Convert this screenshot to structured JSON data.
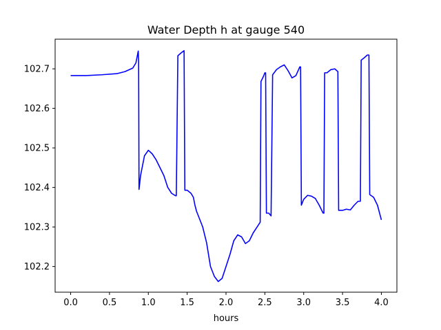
{
  "chart_data": {
    "type": "line",
    "title": "Water Depth h at gauge 540",
    "xlabel": "hours",
    "ylabel": "",
    "xlim": [
      -0.2,
      4.2
    ],
    "ylim": [
      102.135,
      102.775
    ],
    "xticks": [
      0.0,
      0.5,
      1.0,
      1.5,
      2.0,
      2.5,
      3.0,
      3.5,
      4.0
    ],
    "xtick_labels": [
      "0.0",
      "0.5",
      "1.0",
      "1.5",
      "2.0",
      "2.5",
      "3.0",
      "3.5",
      "4.0"
    ],
    "yticks": [
      102.2,
      102.3,
      102.4,
      102.5,
      102.6,
      102.7
    ],
    "ytick_labels": [
      "102.2",
      "102.3",
      "102.4",
      "102.5",
      "102.6",
      "102.7"
    ],
    "grid": false,
    "line_color": "#0000ff",
    "series": [
      {
        "x": [
          0.0,
          0.2,
          0.4,
          0.6,
          0.7,
          0.8,
          0.84,
          0.87,
          0.875,
          0.88,
          0.9,
          0.95,
          1.0,
          1.05,
          1.1,
          1.15,
          1.2,
          1.25,
          1.3,
          1.35,
          1.36,
          1.38,
          1.42,
          1.46,
          1.47,
          1.5,
          1.55,
          1.58,
          1.6,
          1.62,
          1.65,
          1.7,
          1.75,
          1.8,
          1.85,
          1.9,
          1.95,
          2.0,
          2.05,
          2.1,
          2.15,
          2.2,
          2.25,
          2.3,
          2.35,
          2.4,
          2.44,
          2.45,
          2.48,
          2.5,
          2.51,
          2.52,
          2.55,
          2.58,
          2.6,
          2.65,
          2.7,
          2.75,
          2.8,
          2.85,
          2.9,
          2.95,
          2.96,
          2.97,
          3.0,
          3.05,
          3.1,
          3.15,
          3.2,
          3.25,
          3.26,
          3.27,
          3.3,
          3.35,
          3.4,
          3.44,
          3.45,
          3.5,
          3.55,
          3.6,
          3.65,
          3.7,
          3.73,
          3.74,
          3.78,
          3.82,
          3.84,
          3.85,
          3.9,
          3.95,
          4.0
        ],
        "y": [
          102.683,
          102.683,
          102.685,
          102.688,
          102.693,
          102.702,
          102.715,
          102.745,
          102.72,
          102.395,
          102.43,
          102.48,
          102.494,
          102.485,
          102.47,
          102.45,
          102.43,
          102.4,
          102.385,
          102.379,
          102.379,
          102.733,
          102.74,
          102.746,
          102.393,
          102.393,
          102.385,
          102.375,
          102.355,
          102.34,
          102.325,
          102.3,
          102.26,
          102.2,
          102.175,
          102.162,
          102.17,
          102.2,
          102.23,
          102.265,
          102.28,
          102.275,
          102.258,
          102.265,
          102.285,
          102.3,
          102.312,
          102.668,
          102.68,
          102.69,
          102.69,
          102.335,
          102.335,
          102.328,
          102.685,
          102.698,
          102.705,
          102.71,
          102.695,
          102.677,
          102.683,
          102.705,
          102.705,
          102.355,
          102.37,
          102.38,
          102.378,
          102.372,
          102.355,
          102.335,
          102.335,
          102.69,
          102.69,
          102.698,
          102.7,
          102.693,
          102.342,
          102.342,
          102.345,
          102.343,
          102.355,
          102.365,
          102.365,
          102.722,
          102.728,
          102.735,
          102.735,
          102.382,
          102.375,
          102.355,
          102.318
        ]
      }
    ]
  }
}
